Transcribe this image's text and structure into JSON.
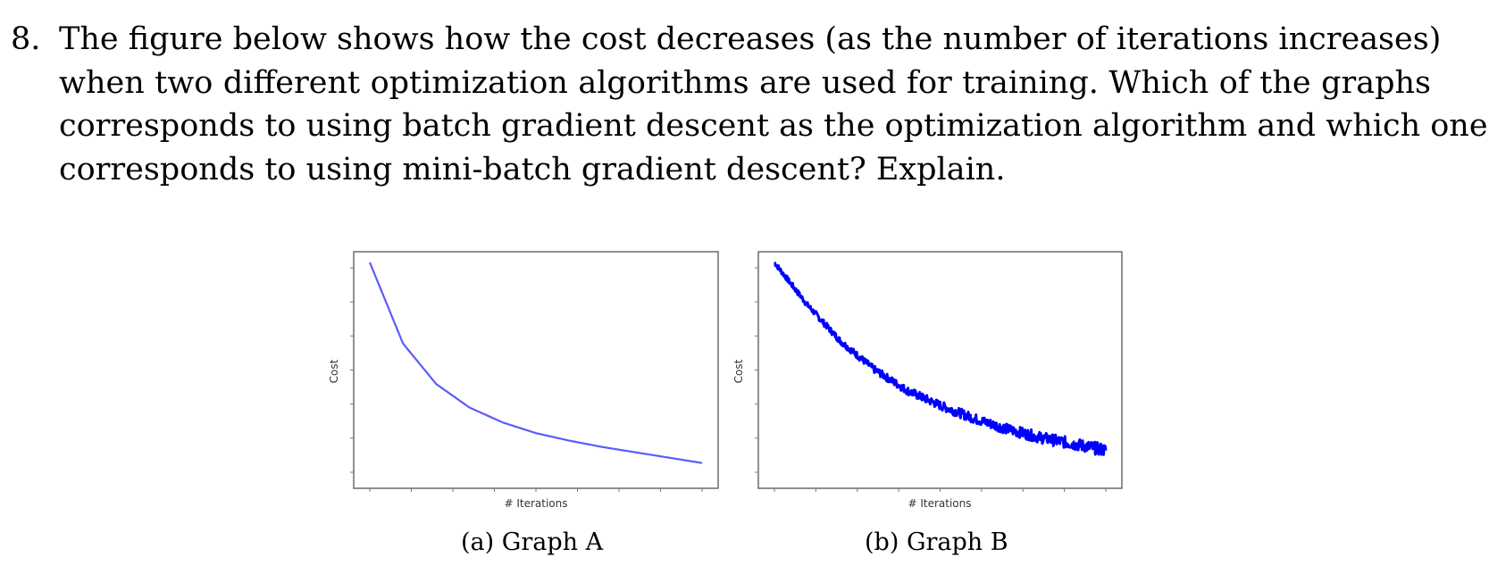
{
  "question": {
    "number": "8.",
    "lines": [
      "The figure below shows how the cost decreases (as the number of iterations increases)",
      "when two different optimization algorithms are used for training.  Which of the graphs",
      "corresponds to using batch gradient descent as the optimization algorithm and which one",
      "corresponds to using mini-batch gradient descent? Explain."
    ]
  },
  "colors": {
    "smooth_line": "#5b5bff",
    "noisy_line": "#0000ff",
    "axis": "#555555"
  },
  "figures": [
    {
      "caption_label": "(a)",
      "caption_title": "Graph A",
      "xlabel": "# Iterations",
      "ylabel": "Cost"
    },
    {
      "caption_label": "(b)",
      "caption_title": "Graph B",
      "xlabel": "# Iterations",
      "ylabel": "Cost"
    }
  ],
  "chart_data": [
    {
      "type": "line",
      "title": "",
      "xlabel": "# Iterations",
      "ylabel": "Cost",
      "x": [
        0,
        1,
        2,
        3,
        4,
        5,
        6,
        7,
        8,
        9,
        10
      ],
      "series": [
        {
          "values": [
            1.0,
            0.62,
            0.43,
            0.32,
            0.25,
            0.2,
            0.165,
            0.135,
            0.11,
            0.085,
            0.06
          ]
        }
      ],
      "grid": false
    },
    {
      "type": "line",
      "title": "",
      "xlabel": "# Iterations",
      "ylabel": "Cost",
      "x": [
        0,
        1,
        2,
        3,
        4,
        5,
        6,
        7,
        8,
        9,
        10
      ],
      "series": [
        {
          "values": [
            1.0,
            0.8,
            0.63,
            0.5,
            0.4,
            0.33,
            0.27,
            0.22,
            0.18,
            0.15,
            0.12
          ]
        }
      ],
      "grid": false
    }
  ]
}
